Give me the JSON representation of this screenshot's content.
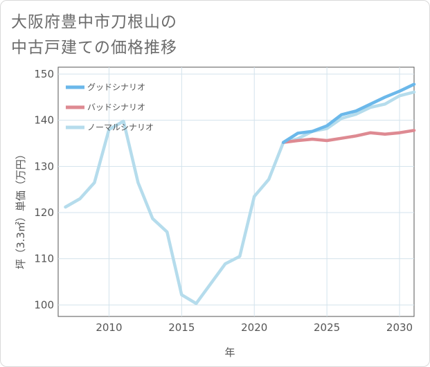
{
  "title_lines": [
    "大阪府豊中市刀根山の",
    "中古戸建ての価格推移"
  ],
  "chart_data": {
    "type": "line",
    "xlabel": "年",
    "ylabel": "坪（3.3㎡）単価（万円）",
    "xlim": [
      2006.5,
      2031
    ],
    "ylim": [
      97.5,
      151.5
    ],
    "x_ticks": [
      2010,
      2015,
      2020,
      2025,
      2030
    ],
    "y_ticks": [
      100,
      110,
      120,
      130,
      140,
      150
    ],
    "grid": true,
    "legend_position": "top-left",
    "series": [
      {
        "name": "グッドシナリオ",
        "color": "#6bb8ea",
        "x": [
          2022,
          2023,
          2024,
          2025,
          2026,
          2027,
          2028,
          2029,
          2030,
          2031
        ],
        "y": [
          135.2,
          137.2,
          137.6,
          138.8,
          141.2,
          142.0,
          143.5,
          145.0,
          146.3,
          147.8
        ]
      },
      {
        "name": "バッドシナリオ",
        "color": "#de8a92",
        "x": [
          2022,
          2023,
          2024,
          2025,
          2026,
          2027,
          2028,
          2029,
          2030,
          2031
        ],
        "y": [
          135.2,
          135.6,
          135.9,
          135.6,
          136.1,
          136.6,
          137.3,
          137.0,
          137.3,
          137.8
        ]
      },
      {
        "name": "ノーマルシナリオ",
        "color": "#b5dcec",
        "x": [
          2007,
          2008,
          2009,
          2010,
          2011,
          2012,
          2013,
          2014,
          2015,
          2016,
          2017,
          2018,
          2019,
          2020,
          2021,
          2022,
          2023,
          2024,
          2025,
          2026,
          2027,
          2028,
          2029,
          2030,
          2031
        ],
        "y": [
          121.2,
          123.0,
          126.5,
          138.0,
          139.8,
          126.5,
          118.7,
          115.8,
          102.2,
          100.3,
          104.6,
          108.9,
          110.5,
          123.5,
          127.2,
          135.2,
          136.0,
          137.6,
          138.2,
          140.4,
          141.3,
          142.8,
          143.5,
          145.3,
          146.1
        ]
      }
    ]
  }
}
